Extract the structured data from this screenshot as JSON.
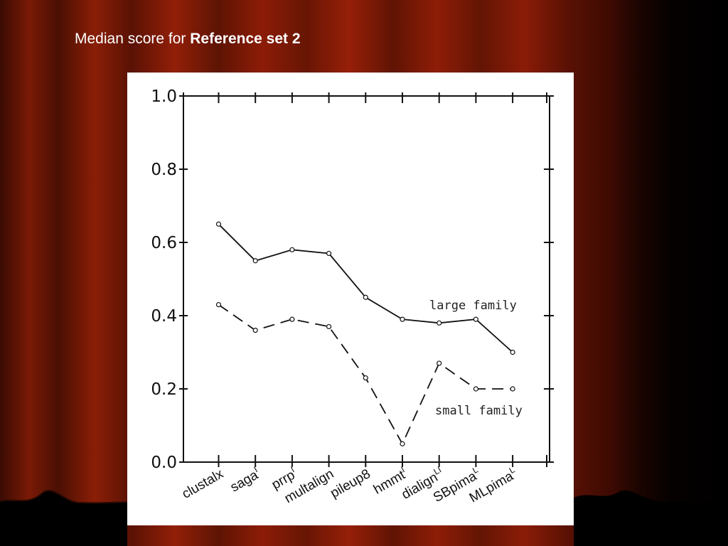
{
  "slide": {
    "title_prefix": "Median score for ",
    "title_bold": "Reference set 2"
  },
  "chart_data": {
    "type": "line",
    "categories": [
      "clustalx",
      "saga",
      "prrp",
      "multalign",
      "pileup8",
      "hmmt",
      "dialign",
      "SBpima",
      "MLpima"
    ],
    "category_superscripts": [
      "",
      "I",
      "I",
      "",
      "",
      "I",
      "LI",
      "L",
      "L"
    ],
    "ylim": [
      0.0,
      1.0
    ],
    "y_ticks": [
      "0.0",
      "0.2",
      "0.4",
      "0.6",
      "0.8",
      "1.0"
    ],
    "series": [
      {
        "name": "large family",
        "style": "solid",
        "values": [
          0.65,
          0.55,
          0.58,
          0.57,
          0.45,
          0.39,
          0.38,
          0.39,
          0.3
        ]
      },
      {
        "name": "small family",
        "style": "dashed",
        "values": [
          0.43,
          0.36,
          0.39,
          0.37,
          0.23,
          0.05,
          0.27,
          0.2,
          0.2
        ]
      }
    ],
    "grid": false,
    "legend": "inline labels beside lines"
  }
}
